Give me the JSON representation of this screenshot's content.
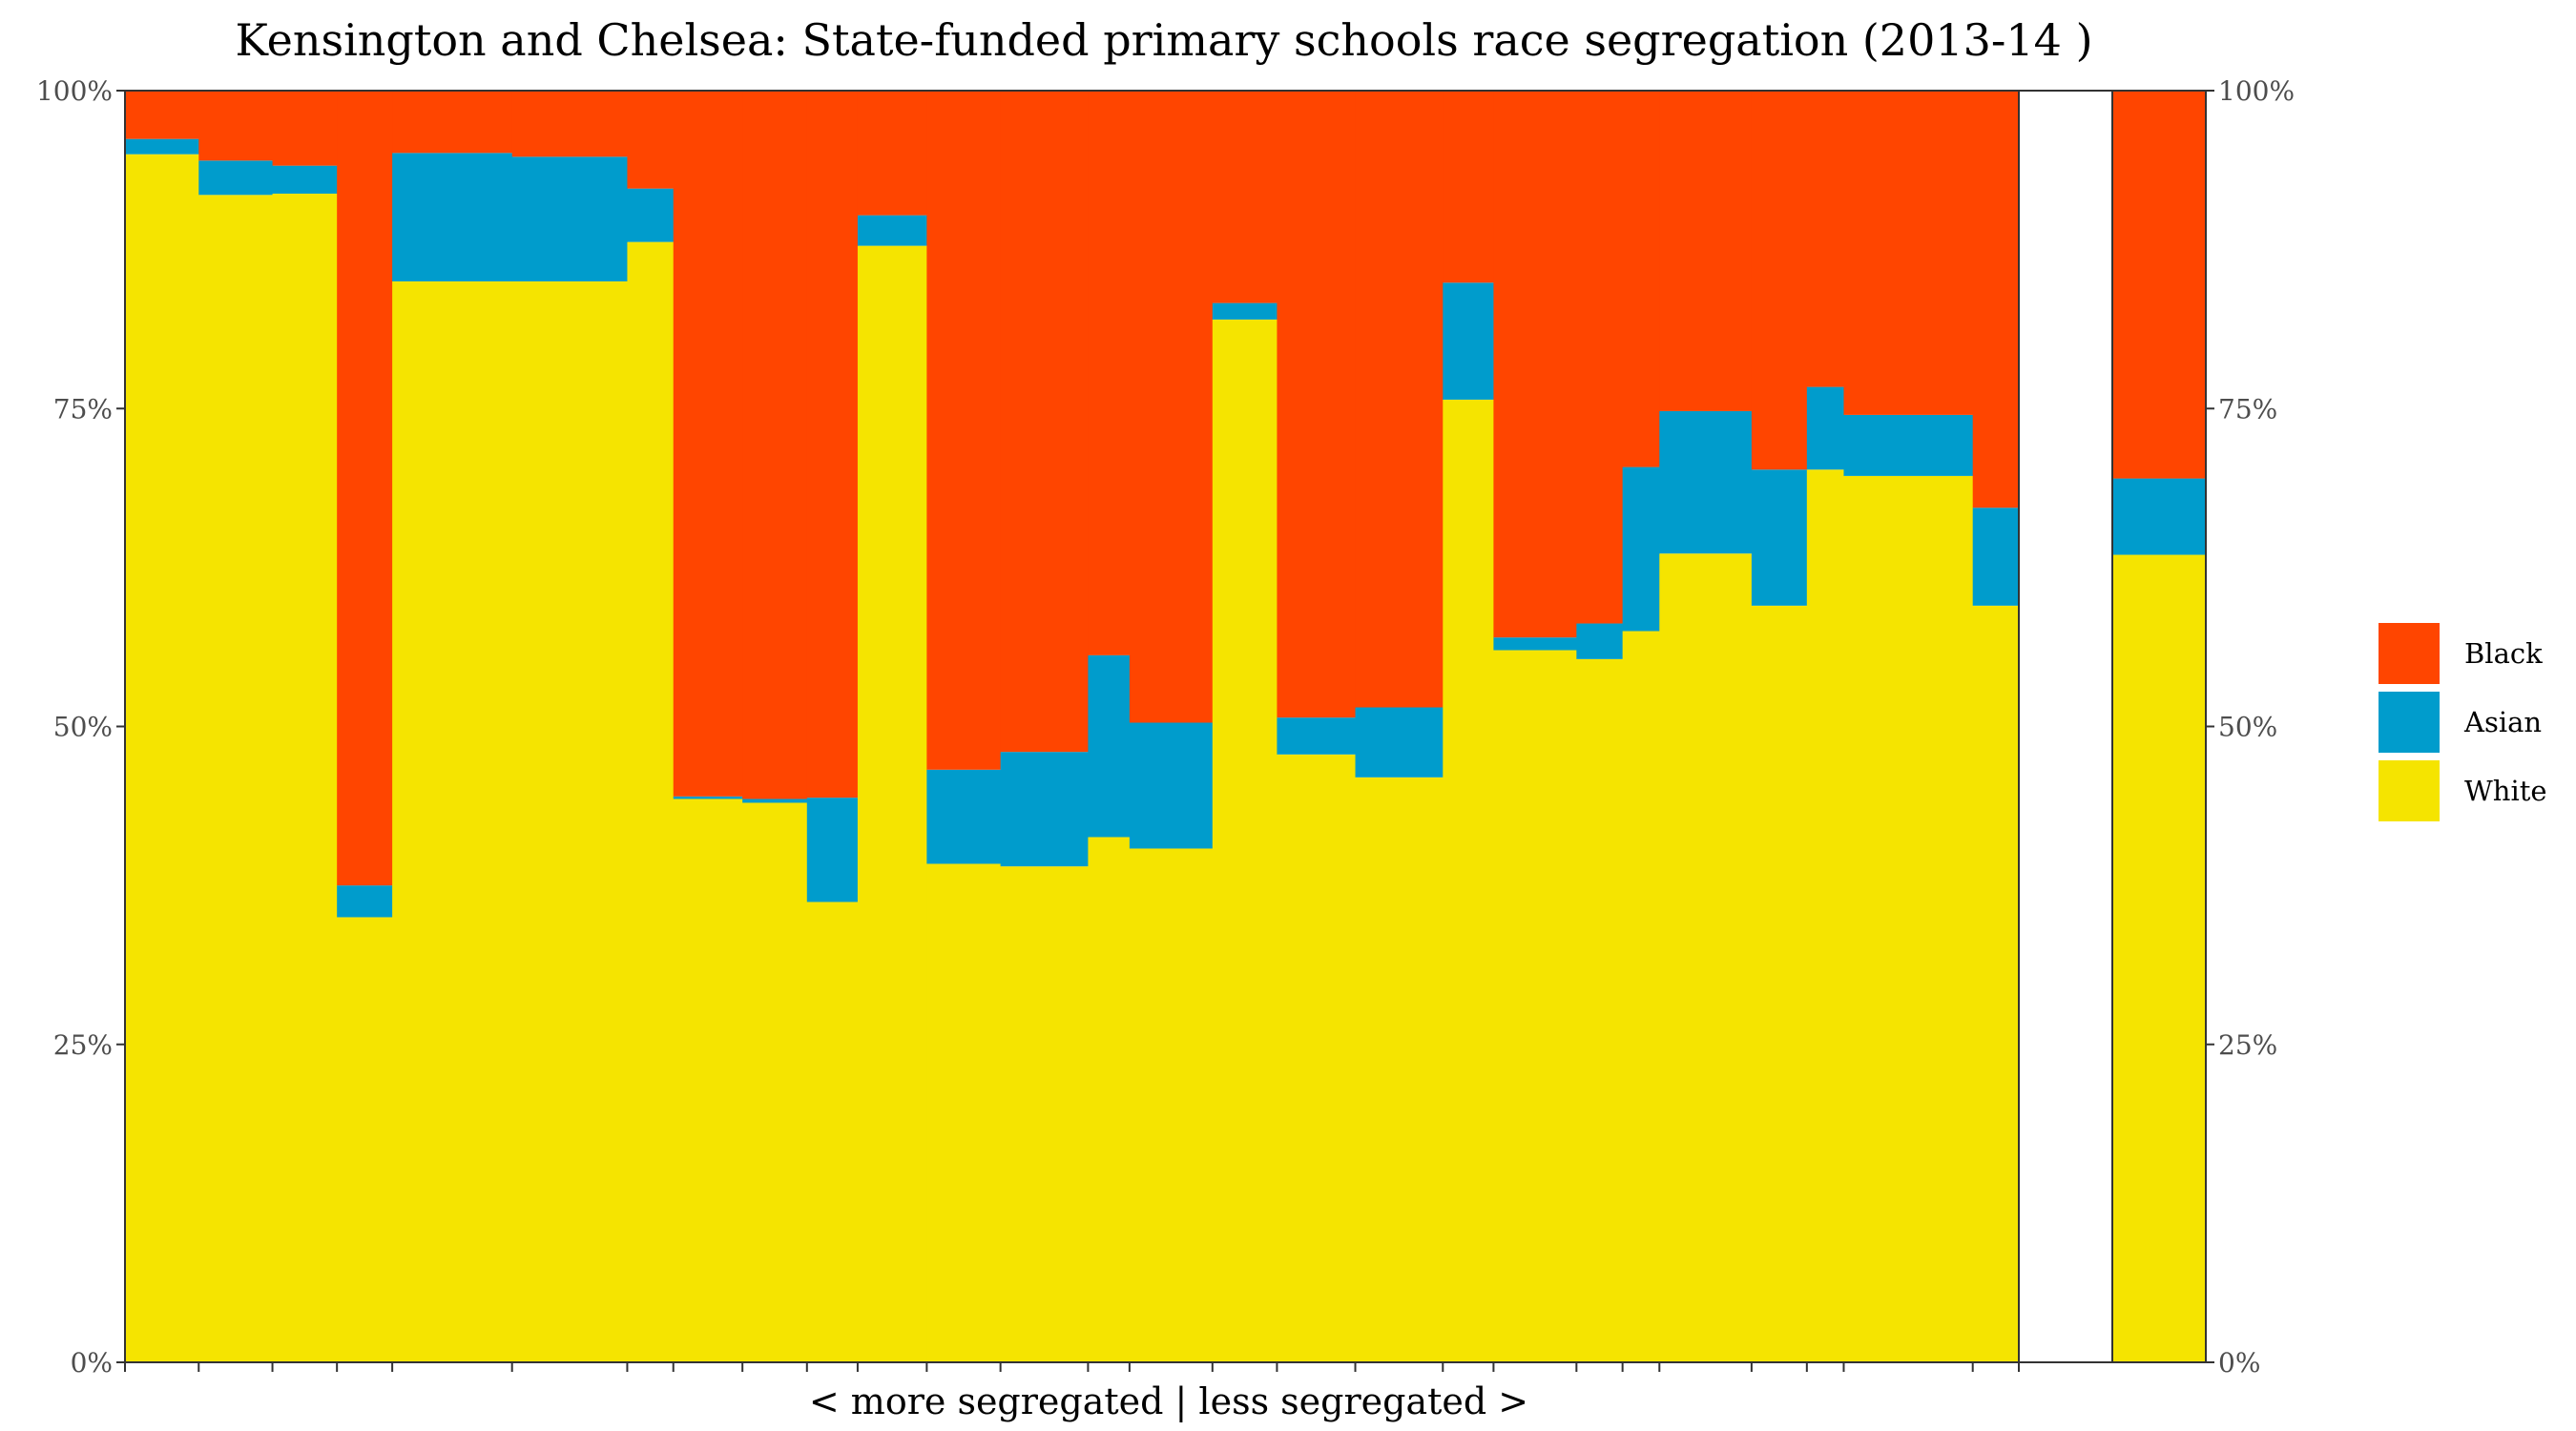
{
  "chart_data": {
    "type": "bar",
    "subtype": "stacked-variable-width",
    "title": "Kensington and Chelsea: State-funded primary schools race segregation (2013-14 )",
    "xlabel": "< more segregated | less segregated >",
    "ylabel": "",
    "ylim": [
      0,
      100
    ],
    "y_ticks": [
      "0%",
      "25%",
      "50%",
      "75%",
      "100%"
    ],
    "y_tick_values": [
      0,
      25,
      50,
      75,
      100
    ],
    "stack_order": [
      "White",
      "Asian",
      "Black"
    ],
    "series_colors": {
      "Black": "#ff4500",
      "Asian": "#009ccc",
      "White": "#f5e400"
    },
    "legend": {
      "position": "right",
      "entries": [
        "Black",
        "Asian",
        "White"
      ]
    },
    "schools": [
      {
        "x0": 0.0,
        "x1": 1.6,
        "white": 95.0,
        "asian": 1.2,
        "black": 3.8
      },
      {
        "x0": 1.6,
        "x1": 3.2,
        "white": 91.8,
        "asian": 2.7,
        "black": 5.5
      },
      {
        "x0": 3.2,
        "x1": 4.6,
        "white": 91.9,
        "asian": 2.2,
        "black": 5.9
      },
      {
        "x0": 4.6,
        "x1": 5.8,
        "white": 35.0,
        "asian": 2.5,
        "black": 62.5
      },
      {
        "x0": 5.8,
        "x1": 8.4,
        "white": 85.0,
        "asian": 10.1,
        "black": 4.9
      },
      {
        "x0": 8.4,
        "x1": 10.9,
        "white": 85.0,
        "asian": 9.8,
        "black": 5.2
      },
      {
        "x0": 10.9,
        "x1": 11.9,
        "white": 88.1,
        "asian": 4.2,
        "black": 7.7
      },
      {
        "x0": 11.9,
        "x1": 13.4,
        "white": 44.3,
        "asian": 0.2,
        "black": 55.5
      },
      {
        "x0": 13.4,
        "x1": 14.8,
        "white": 44.0,
        "asian": 0.3,
        "black": 55.7
      },
      {
        "x0": 14.8,
        "x1": 15.9,
        "white": 36.2,
        "asian": 8.2,
        "black": 55.6
      },
      {
        "x0": 15.9,
        "x1": 17.4,
        "white": 87.8,
        "asian": 2.4,
        "black": 9.8
      },
      {
        "x0": 17.4,
        "x1": 19.0,
        "white": 39.2,
        "asian": 7.4,
        "black": 53.4
      },
      {
        "x0": 19.0,
        "x1": 20.9,
        "white": 39.0,
        "asian": 9.0,
        "black": 52.0
      },
      {
        "x0": 20.9,
        "x1": 21.8,
        "white": 41.3,
        "asian": 14.3,
        "black": 44.4
      },
      {
        "x0": 21.8,
        "x1": 23.6,
        "white": 40.4,
        "asian": 9.9,
        "black": 49.7
      },
      {
        "x0": 23.6,
        "x1": 25.0,
        "white": 82.0,
        "asian": 1.3,
        "black": 16.7
      },
      {
        "x0": 25.0,
        "x1": 26.7,
        "white": 47.8,
        "asian": 2.9,
        "black": 49.3
      },
      {
        "x0": 26.7,
        "x1": 28.6,
        "white": 46.0,
        "asian": 5.5,
        "black": 48.5
      },
      {
        "x0": 28.6,
        "x1": 29.7,
        "white": 75.7,
        "asian": 9.2,
        "black": 15.1
      },
      {
        "x0": 29.7,
        "x1": 31.5,
        "white": 56.0,
        "asian": 1.0,
        "black": 43.0
      },
      {
        "x0": 31.5,
        "x1": 32.5,
        "white": 55.3,
        "asian": 2.8,
        "black": 41.9
      },
      {
        "x0": 32.5,
        "x1": 33.3,
        "white": 57.5,
        "asian": 12.9,
        "black": 29.6
      },
      {
        "x0": 33.3,
        "x1": 35.3,
        "white": 63.6,
        "asian": 11.2,
        "black": 25.2
      },
      {
        "x0": 35.3,
        "x1": 36.5,
        "white": 59.5,
        "asian": 10.7,
        "black": 29.8
      },
      {
        "x0": 36.5,
        "x1": 37.3,
        "white": 70.2,
        "asian": 6.5,
        "black": 23.3
      },
      {
        "x0": 37.3,
        "x1": 40.1,
        "white": 69.7,
        "asian": 4.8,
        "black": 25.5
      },
      {
        "x0": 40.1,
        "x1": 41.1,
        "white": 59.5,
        "asian": 7.7,
        "black": 32.8
      }
    ],
    "total_column": {
      "white": 63.5,
      "asian": 6.0,
      "black": 30.5
    },
    "x_axis_ticks": [
      0,
      1.6,
      3.2,
      4.6,
      5.8,
      8.4,
      10.9,
      11.9,
      13.4,
      14.8,
      15.9,
      17.4,
      19.0,
      20.9,
      21.8,
      23.6,
      25.0,
      26.7,
      28.6,
      29.7,
      31.5,
      32.5,
      33.3,
      35.3,
      36.5,
      37.3,
      40.1,
      41.1
    ]
  }
}
